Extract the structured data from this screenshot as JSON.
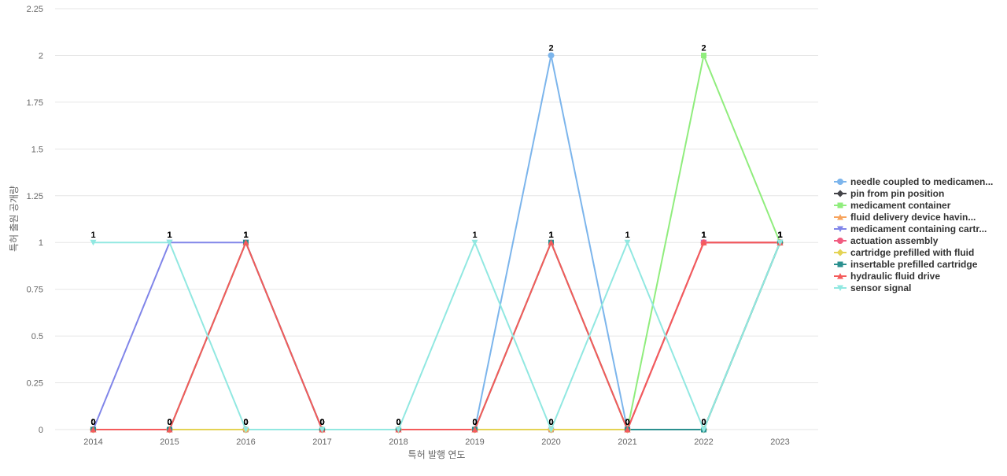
{
  "chart_data": {
    "type": "line",
    "x_label": "특허 발행 연도",
    "y_label": "특허 출원 공개량",
    "categories": [
      "2014",
      "2015",
      "2016",
      "2017",
      "2018",
      "2019",
      "2020",
      "2021",
      "2022",
      "2023"
    ],
    "ylim": [
      0,
      2.25
    ],
    "yticks": [
      0,
      0.25,
      0.5,
      0.75,
      1,
      1.25,
      1.5,
      1.75,
      2,
      2.25
    ],
    "grid": true,
    "legend": "right",
    "series": [
      {
        "name": "needle coupled to medicamen...",
        "color": "#7cb5ec",
        "values": [
          0,
          0,
          0,
          0,
          0,
          0,
          2,
          0,
          0,
          1
        ]
      },
      {
        "name": "pin from pin position",
        "color": "#434348",
        "values": [
          0,
          0,
          0,
          0,
          0,
          0,
          0,
          0,
          0,
          1
        ]
      },
      {
        "name": "medicament container",
        "color": "#90ed7d",
        "values": [
          0,
          0,
          0,
          0,
          0,
          0,
          0,
          0,
          2,
          1
        ]
      },
      {
        "name": "fluid delivery device havin...",
        "color": "#f7a35c",
        "values": [
          0,
          0,
          1,
          0,
          0,
          0,
          1,
          0,
          1,
          1
        ]
      },
      {
        "name": "medicament containing cartr...",
        "color": "#8085e9",
        "values": [
          0,
          1,
          1,
          0,
          0,
          0,
          0,
          0,
          1,
          1
        ]
      },
      {
        "name": "actuation assembly",
        "color": "#f15c80",
        "values": [
          0,
          0,
          0,
          0,
          0,
          0,
          0,
          0,
          1,
          1
        ]
      },
      {
        "name": "cartridge prefilled with fluid",
        "color": "#e4d354",
        "values": [
          0,
          0,
          0,
          0,
          0,
          0,
          0,
          0,
          0,
          1
        ]
      },
      {
        "name": "insertable prefilled cartridge",
        "color": "#2b908f",
        "values": [
          0,
          0,
          1,
          0,
          0,
          0,
          1,
          0,
          0,
          1
        ]
      },
      {
        "name": "hydraulic fluid drive",
        "color": "#f45b5b",
        "values": [
          0,
          0,
          1,
          0,
          0,
          0,
          1,
          0,
          1,
          1
        ]
      },
      {
        "name": "sensor signal",
        "color": "#91e8e1",
        "values": [
          1,
          1,
          0,
          0,
          0,
          1,
          0,
          1,
          0,
          1
        ]
      }
    ]
  }
}
